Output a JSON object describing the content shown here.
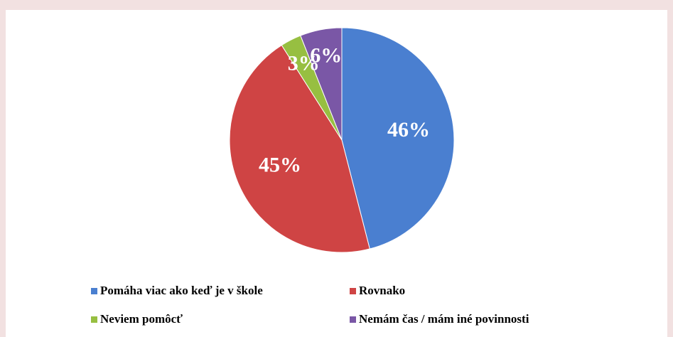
{
  "chart_data": {
    "type": "pie",
    "categories": [
      "Pomáha viac ako keď je v škole",
      "Rovnako",
      "Neviem pomôcť",
      "Nemám čas / mám iné povinnosti"
    ],
    "values": [
      46,
      45,
      3,
      6
    ],
    "value_labels": [
      "46%",
      "45%",
      "3%",
      "6%"
    ],
    "colors": [
      "#4a7fd0",
      "#cf4444",
      "#97bf41",
      "#7a57a6"
    ],
    "legend": "bottom"
  }
}
